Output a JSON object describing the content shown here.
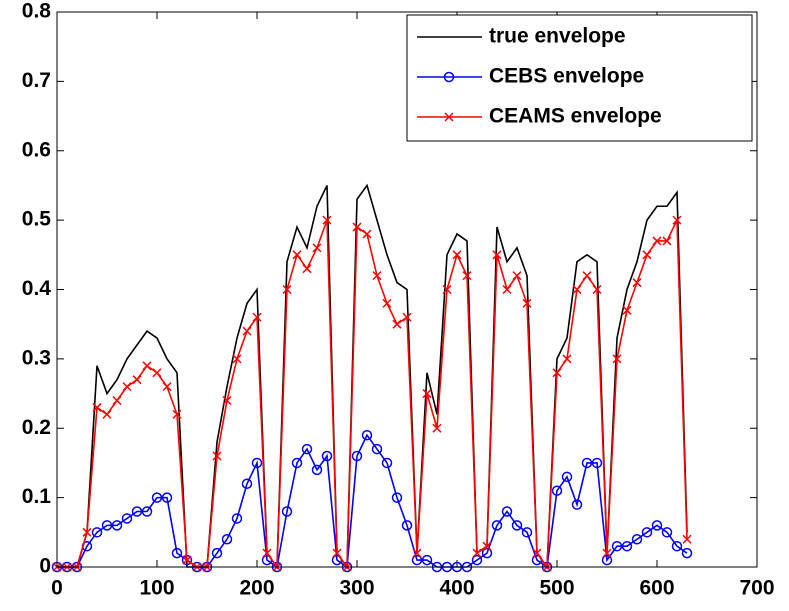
{
  "chart_data": {
    "type": "line",
    "x": [
      0,
      10,
      20,
      30,
      40,
      50,
      60,
      70,
      80,
      90,
      100,
      110,
      120,
      130,
      140,
      150,
      160,
      170,
      180,
      190,
      200,
      210,
      220,
      230,
      240,
      250,
      260,
      270,
      280,
      290,
      300,
      310,
      320,
      330,
      340,
      350,
      360,
      370,
      380,
      390,
      400,
      410,
      420,
      430,
      440,
      450,
      460,
      470,
      480,
      490,
      500,
      510,
      520,
      530,
      540,
      550,
      560,
      570,
      580,
      590,
      600,
      610,
      620,
      630
    ],
    "series": [
      {
        "name": "true envelope",
        "color": "#000000",
        "marker": "none",
        "values": [
          0,
          0,
          0,
          0.05,
          0.29,
          0.25,
          0.27,
          0.3,
          0.32,
          0.34,
          0.33,
          0.3,
          0.28,
          0,
          0,
          0,
          0.18,
          0.26,
          0.33,
          0.38,
          0.4,
          0.02,
          0,
          0.44,
          0.49,
          0.46,
          0.52,
          0.55,
          0.02,
          0,
          0.53,
          0.55,
          0.5,
          0.45,
          0.41,
          0.4,
          0.02,
          0.28,
          0.22,
          0.45,
          0.48,
          0.47,
          0.02,
          0.03,
          0.49,
          0.44,
          0.46,
          0.42,
          0.02,
          0,
          0.3,
          0.33,
          0.44,
          0.45,
          0.44,
          0.02,
          0.33,
          0.4,
          0.44,
          0.5,
          0.52,
          0.52,
          0.54,
          0.05
        ]
      },
      {
        "name": "CEBS envelope",
        "color": "#0000ff",
        "marker": "o",
        "values": [
          0,
          0,
          0,
          0.03,
          0.05,
          0.06,
          0.06,
          0.07,
          0.08,
          0.08,
          0.1,
          0.1,
          0.02,
          0.01,
          0,
          0,
          0.02,
          0.04,
          0.07,
          0.12,
          0.15,
          0.01,
          0,
          0.08,
          0.15,
          0.17,
          0.14,
          0.16,
          0.01,
          0,
          0.16,
          0.19,
          0.17,
          0.15,
          0.1,
          0.06,
          0.01,
          0.01,
          0,
          0,
          0,
          0,
          0.01,
          0.02,
          0.06,
          0.08,
          0.06,
          0.05,
          0.01,
          0,
          0.11,
          0.13,
          0.09,
          0.15,
          0.15,
          0.01,
          0.03,
          0.03,
          0.04,
          0.05,
          0.06,
          0.05,
          0.03,
          0.02
        ]
      },
      {
        "name": "CEAMS envelope",
        "color": "#ff0000",
        "marker": "x",
        "values": [
          0,
          0,
          0,
          0.05,
          0.23,
          0.22,
          0.24,
          0.26,
          0.27,
          0.29,
          0.28,
          0.26,
          0.22,
          0.01,
          0,
          0,
          0.16,
          0.24,
          0.3,
          0.34,
          0.36,
          0.02,
          0,
          0.4,
          0.45,
          0.43,
          0.46,
          0.5,
          0.02,
          0,
          0.49,
          0.48,
          0.42,
          0.38,
          0.35,
          0.36,
          0.02,
          0.25,
          0.2,
          0.4,
          0.45,
          0.42,
          0.02,
          0.03,
          0.45,
          0.4,
          0.42,
          0.38,
          0.02,
          0,
          0.28,
          0.3,
          0.4,
          0.42,
          0.4,
          0.02,
          0.3,
          0.37,
          0.41,
          0.45,
          0.47,
          0.47,
          0.5,
          0.04
        ]
      }
    ],
    "xlim": [
      0,
      700
    ],
    "xticks": [
      0,
      100,
      200,
      300,
      400,
      500,
      600,
      700
    ],
    "ylim": [
      0,
      0.8
    ],
    "yticks": [
      0,
      0.1,
      0.2,
      0.3,
      0.4,
      0.5,
      0.6,
      0.7,
      0.8
    ],
    "grid": false,
    "legend": "northeast"
  }
}
